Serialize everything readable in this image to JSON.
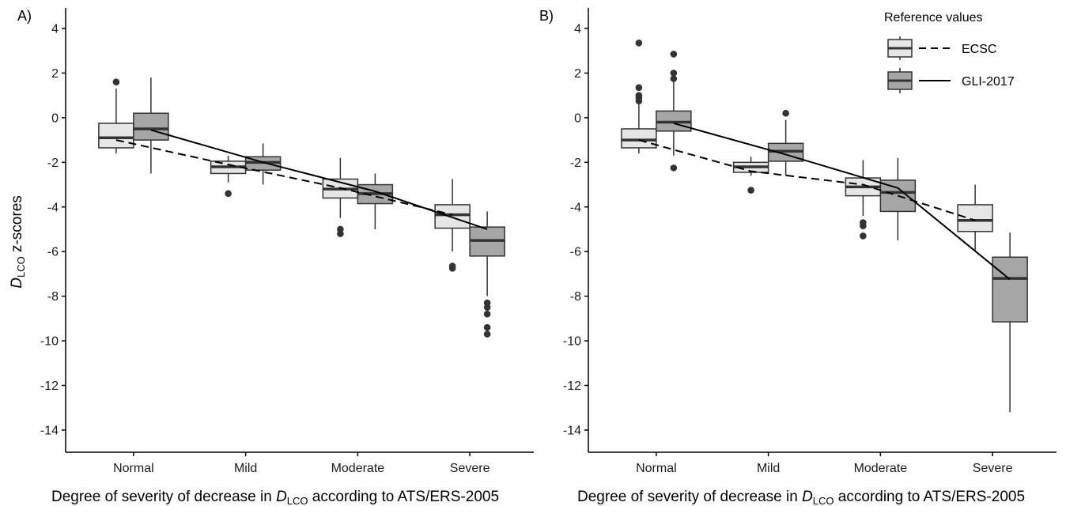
{
  "figure": {
    "ylabel_main": "D",
    "ylabel_sub": "LCO",
    "ylabel_tail": " z-scores",
    "xlabel_pre": "Degree of severity of decrease in ",
    "xlabel_main": "D",
    "xlabel_sub": "LCO",
    "xlabel_post": " according to ATS/ERS-2005"
  },
  "legend": {
    "title": "Reference values",
    "items": [
      {
        "label": "ECSC",
        "fill": "#e6e6e6",
        "line": "dashed"
      },
      {
        "label": "GLI-2017",
        "fill": "#a6a6a6",
        "line": "solid"
      }
    ]
  },
  "colors": {
    "ecsc_fill": "#e6e6e6",
    "gli_fill": "#a6a6a6",
    "outline": "#333333",
    "median": "#333333"
  },
  "chart_data": [
    {
      "type": "box",
      "panel_label": "A)",
      "categories": [
        "Normal",
        "Mild",
        "Moderate",
        "Severe"
      ],
      "ylim": [
        -15,
        5
      ],
      "yticks": [
        4,
        2,
        0,
        -2,
        -4,
        -6,
        -8,
        -10,
        -12,
        -14
      ],
      "grid": false,
      "series": [
        {
          "name": "ECSC",
          "boxes": [
            {
              "lower_whisker": -1.6,
              "q1": -1.35,
              "median": -0.9,
              "q3": -0.25,
              "upper_whisker": 1.3,
              "outliers": [
                1.6
              ]
            },
            {
              "lower_whisker": -2.9,
              "q1": -2.5,
              "median": -2.2,
              "q3": -1.95,
              "upper_whisker": -1.7,
              "outliers": [
                -3.4
              ]
            },
            {
              "lower_whisker": -4.5,
              "q1": -3.6,
              "median": -3.2,
              "q3": -2.75,
              "upper_whisker": -1.8,
              "outliers": [
                -5.0,
                -5.2
              ]
            },
            {
              "lower_whisker": -6.0,
              "q1": -4.95,
              "median": -4.35,
              "q3": -3.9,
              "upper_whisker": -2.75,
              "outliers": [
                -6.65,
                -6.75
              ]
            }
          ],
          "trend": [
            -1.0,
            -2.1,
            -3.15,
            -4.35
          ]
        },
        {
          "name": "GLI-2017",
          "boxes": [
            {
              "lower_whisker": -2.5,
              "q1": -1.0,
              "median": -0.5,
              "q3": 0.2,
              "upper_whisker": 1.8,
              "outliers": []
            },
            {
              "lower_whisker": -3.0,
              "q1": -2.35,
              "median": -2.0,
              "q3": -1.75,
              "upper_whisker": -1.15,
              "outliers": []
            },
            {
              "lower_whisker": -5.0,
              "q1": -3.85,
              "median": -3.4,
              "q3": -3.0,
              "upper_whisker": -2.5,
              "outliers": []
            },
            {
              "lower_whisker": -8.0,
              "q1": -6.2,
              "median": -5.5,
              "q3": -4.9,
              "upper_whisker": -4.2,
              "outliers": [
                -8.3,
                -8.5,
                -8.8,
                -9.4,
                -9.7
              ]
            }
          ],
          "trend": [
            -0.55,
            -2.0,
            -3.3,
            -5.0
          ]
        }
      ]
    },
    {
      "type": "box",
      "panel_label": "B)",
      "categories": [
        "Normal",
        "Mild",
        "Moderate",
        "Severe"
      ],
      "ylim": [
        -15,
        5
      ],
      "yticks": [
        4,
        2,
        0,
        -2,
        -4,
        -6,
        -8,
        -10,
        -12,
        -14
      ],
      "grid": false,
      "series": [
        {
          "name": "ECSC",
          "boxes": [
            {
              "lower_whisker": -1.6,
              "q1": -1.35,
              "median": -1.0,
              "q3": -0.5,
              "upper_whisker": 0.6,
              "outliers": [
                0.75,
                0.9,
                1.0,
                1.35,
                3.35
              ]
            },
            {
              "lower_whisker": -2.6,
              "q1": -2.45,
              "median": -2.2,
              "q3": -2.0,
              "upper_whisker": -1.75,
              "outliers": [
                -3.25
              ]
            },
            {
              "lower_whisker": -4.4,
              "q1": -3.5,
              "median": -3.1,
              "q3": -2.7,
              "upper_whisker": -1.9,
              "outliers": [
                -4.7,
                -4.85,
                -5.3
              ]
            },
            {
              "lower_whisker": -6.0,
              "q1": -5.1,
              "median": -4.6,
              "q3": -3.9,
              "upper_whisker": -3.0,
              "outliers": []
            }
          ],
          "trend": [
            -1.0,
            -2.4,
            -3.0,
            -4.6
          ]
        },
        {
          "name": "GLI-2017",
          "boxes": [
            {
              "lower_whisker": -1.7,
              "q1": -0.6,
              "median": -0.2,
              "q3": 0.3,
              "upper_whisker": 1.6,
              "outliers": [
                -2.25,
                1.75,
                2.0,
                2.85
              ]
            },
            {
              "lower_whisker": -2.6,
              "q1": -1.95,
              "median": -1.5,
              "q3": -1.15,
              "upper_whisker": -0.1,
              "outliers": [
                0.2
              ]
            },
            {
              "lower_whisker": -5.5,
              "q1": -4.2,
              "median": -3.35,
              "q3": -2.8,
              "upper_whisker": -1.8,
              "outliers": []
            },
            {
              "lower_whisker": -13.2,
              "q1": -9.15,
              "median": -7.2,
              "q3": -6.25,
              "upper_whisker": -5.15,
              "outliers": []
            }
          ],
          "trend": [
            -0.25,
            -1.65,
            -3.15,
            -7.25
          ]
        }
      ]
    }
  ]
}
